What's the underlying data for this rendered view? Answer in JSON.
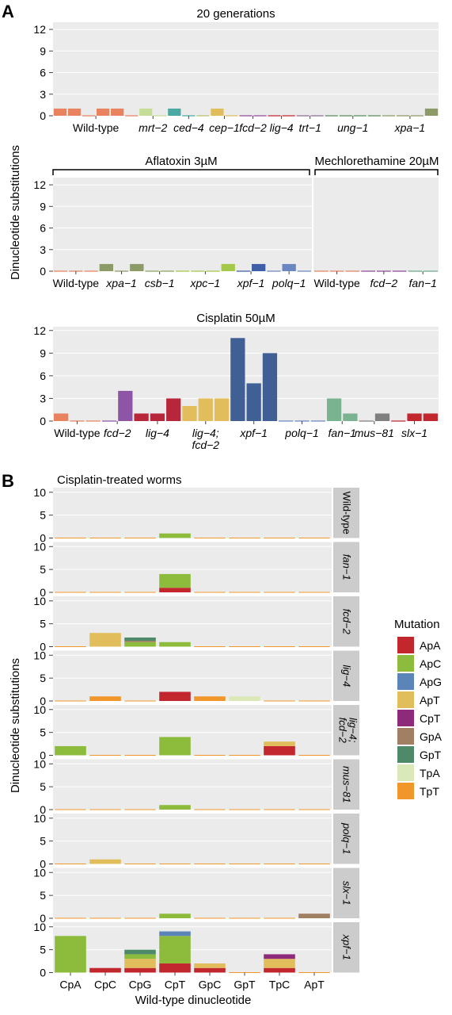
{
  "panel_labels": {
    "a": "A",
    "b": "B"
  },
  "y_axis_labels": {
    "a": "Dinucleotide substitutions",
    "b": "Dinucleotide substitutions"
  },
  "x_axis_label_b": "Wild-type dinucleotide",
  "legend": {
    "title": "Mutation",
    "items": [
      {
        "label": "ApA",
        "color": "#c1272d"
      },
      {
        "label": "ApC",
        "color": "#8dbc3c"
      },
      {
        "label": "ApG",
        "color": "#5b84b8"
      },
      {
        "label": "ApT",
        "color": "#e2bd5c"
      },
      {
        "label": "CpT",
        "color": "#8e2a7a"
      },
      {
        "label": "GpA",
        "color": "#a07f63"
      },
      {
        "label": "GpT",
        "color": "#4e8a6a"
      },
      {
        "label": "TpA",
        "color": "#dbe8b8"
      },
      {
        "label": "TpT",
        "color": "#f0962a"
      }
    ]
  },
  "chart_data": [
    {
      "type": "bar",
      "title": "20 generations",
      "ylim": [
        0,
        13
      ],
      "yticks": [
        0,
        3,
        6,
        9,
        12
      ],
      "values": [
        1,
        1,
        0,
        1,
        1,
        0,
        1,
        0,
        1,
        0,
        0,
        1,
        0,
        0,
        0,
        0,
        0,
        0,
        0,
        0,
        0,
        0,
        0,
        0,
        0,
        0,
        1
      ],
      "colors": [
        "#e8825f",
        "#e8825f",
        "#e8825f",
        "#e8825f",
        "#e8825f",
        "#e8825f",
        "#c5dd96",
        "#c5dd96",
        "#4aa9a3",
        "#4aa9a3",
        "#b7c26b",
        "#e2bd5c",
        "#e2bd5c",
        "#8e4a99",
        "#8e4a99",
        "#c1272d",
        "#c1272d",
        "#8c6d95",
        "#8c6d95",
        "#5a8a5a",
        "#5a8a5a",
        "#5a8a5a",
        "#5a8a5a",
        "#8c9a68",
        "#8c9a68",
        "#8c9a68",
        "#8c9a68"
      ],
      "group_labels": [
        {
          "label": "Wild-type",
          "bar_from": 0,
          "bar_to": 5
        },
        {
          "label": "mrt−2",
          "bar_from": 6,
          "bar_to": 7
        },
        {
          "label": "ced−4",
          "bar_from": 8,
          "bar_to": 10
        },
        {
          "label": "cep−1",
          "bar_from": 11,
          "bar_to": 12
        },
        {
          "label": "fcd−2",
          "bar_from": 13,
          "bar_to": 14
        },
        {
          "label": "lig−4",
          "bar_from": 15,
          "bar_to": 16
        },
        {
          "label": "trt−1",
          "bar_from": 17,
          "bar_to": 18
        },
        {
          "label": "ung−1",
          "bar_from": 19,
          "bar_to": 22
        },
        {
          "label": "xpa−1",
          "bar_from": 23,
          "bar_to": 26
        }
      ]
    },
    {
      "type": "bar",
      "title": "Aflatoxin 3µM",
      "ylim": [
        0,
        13
      ],
      "yticks": [
        0,
        3,
        6,
        9,
        12
      ],
      "values": [
        0,
        0,
        0,
        1,
        0,
        1,
        0,
        0,
        0,
        0,
        0,
        1,
        0,
        1,
        0,
        1,
        0
      ],
      "colors": [
        "#e8825f",
        "#e8825f",
        "#e8825f",
        "#8c9a68",
        "#8c9a68",
        "#8c9a68",
        "#8aa55f",
        "#8aa55f",
        "#a6c84a",
        "#a6c84a",
        "#a6c84a",
        "#a6c84a",
        "#3f5ea8",
        "#3f5ea8",
        "#6b86c0",
        "#6b86c0",
        "#6b86c0"
      ],
      "group_labels": [
        {
          "label": "Wild-type",
          "bar_from": 0,
          "bar_to": 2
        },
        {
          "label": "xpa−1",
          "bar_from": 3,
          "bar_to": 5
        },
        {
          "label": "csb−1",
          "bar_from": 6,
          "bar_to": 7
        },
        {
          "label": "xpc−1",
          "bar_from": 8,
          "bar_to": 11
        },
        {
          "label": "xpf−1",
          "bar_from": 12,
          "bar_to": 13
        },
        {
          "label": "polq−1",
          "bar_from": 14,
          "bar_to": 16
        }
      ]
    },
    {
      "type": "bar",
      "title": "Mechlorethamine 20µM",
      "ylim": [
        0,
        13
      ],
      "values": [
        0,
        0,
        0,
        0,
        0,
        0,
        0,
        0
      ],
      "colors": [
        "#e8825f",
        "#e8825f",
        "#e8825f",
        "#8e4a99",
        "#8e4a99",
        "#8e4a99",
        "#6aa88a",
        "#6aa88a"
      ],
      "group_labels": [
        {
          "label": "Wild-type",
          "bar_from": 0,
          "bar_to": 2
        },
        {
          "label": "fcd−2",
          "bar_from": 3,
          "bar_to": 5
        },
        {
          "label": "fan−1",
          "bar_from": 6,
          "bar_to": 7
        }
      ]
    },
    {
      "type": "bar",
      "title": "Cisplatin 50µM",
      "ylim": [
        0,
        12.5
      ],
      "yticks": [
        0,
        3,
        6,
        9,
        12
      ],
      "values": [
        1,
        0,
        0,
        0,
        4,
        1,
        1,
        3,
        2,
        3,
        3,
        11,
        5,
        9,
        0,
        0,
        0,
        3,
        1,
        0,
        1,
        0,
        1,
        1
      ],
      "colors": [
        "#e8825f",
        "#e8825f",
        "#e8825f",
        "#8e55a6",
        "#8e55a6",
        "#b7263a",
        "#b7263a",
        "#b7263a",
        "#e2bd5c",
        "#e2bd5c",
        "#e2bd5c",
        "#3f5f95",
        "#3f5f95",
        "#3f5f95",
        "#6b86c0",
        "#6b86c0",
        "#6b86c0",
        "#79b38f",
        "#79b38f",
        "#7f7f7f",
        "#7f7f7f",
        "#c1272d",
        "#c1272d",
        "#c1272d"
      ],
      "group_labels": [
        {
          "label": "Wild-type",
          "bar_from": 0,
          "bar_to": 2
        },
        {
          "label": "fcd−2",
          "bar_from": 3,
          "bar_to": 4
        },
        {
          "label": "lig−4",
          "bar_from": 5,
          "bar_to": 7
        },
        {
          "label": "lig−4;",
          "label2": "fcd−2",
          "bar_from": 8,
          "bar_to": 10
        },
        {
          "label": "xpf−1",
          "bar_from": 11,
          "bar_to": 13
        },
        {
          "label": "polq−1",
          "bar_from": 14,
          "bar_to": 16
        },
        {
          "label": "fan−1",
          "bar_from": 17,
          "bar_to": 18
        },
        {
          "label": "mus−81",
          "bar_from": 19,
          "bar_to": 20
        },
        {
          "label": "slx−1",
          "bar_from": 21,
          "bar_to": 23
        }
      ]
    },
    {
      "type": "bar",
      "title": "Cisplatin-treated worms",
      "stacked": true,
      "categories": [
        "CpA",
        "CpC",
        "CpG",
        "CpT",
        "GpC",
        "GpT",
        "TpC",
        "ApT"
      ],
      "ylim": [
        0,
        11
      ],
      "yticks": [
        0,
        5,
        10
      ],
      "facets": [
        {
          "label": "Wild-type",
          "stacks": [
            [],
            [],
            [],
            [
              [
                "ApC",
                1
              ]
            ],
            [],
            [],
            [],
            []
          ]
        },
        {
          "label": "fan−1",
          "stacks": [
            [],
            [],
            [],
            [
              [
                "ApA",
                1
              ],
              [
                "ApC",
                3
              ]
            ],
            [],
            [],
            [],
            []
          ]
        },
        {
          "label": "fcd−2",
          "stacks": [
            [],
            [
              [
                "ApT",
                3
              ]
            ],
            [
              [
                "ApC",
                1
              ],
              [
                "GpA",
                0.3
              ],
              [
                "GpT",
                0.7
              ]
            ],
            [
              [
                "ApC",
                1
              ]
            ],
            [],
            [],
            [],
            []
          ]
        },
        {
          "label": "lig−4",
          "stacks": [
            [],
            [
              [
                "TpT",
                1
              ]
            ],
            [],
            [
              [
                "ApA",
                2
              ]
            ],
            [
              [
                "TpT",
                1
              ]
            ],
            [
              [
                "TpA",
                1
              ]
            ],
            [],
            []
          ]
        },
        {
          "label": "lig−4;",
          "label2": "fcd−2",
          "stacks": [
            [
              [
                "ApC",
                2
              ]
            ],
            [],
            [],
            [
              [
                "ApC",
                4
              ]
            ],
            [],
            [],
            [
              [
                "ApA",
                2
              ],
              [
                "ApT",
                1
              ]
            ],
            []
          ]
        },
        {
          "label": "mus−81",
          "stacks": [
            [],
            [],
            [],
            [
              [
                "ApC",
                1
              ]
            ],
            [],
            [],
            [],
            []
          ]
        },
        {
          "label": "polq−1",
          "stacks": [
            [],
            [
              [
                "ApT",
                1
              ]
            ],
            [],
            [],
            [],
            [],
            [],
            []
          ]
        },
        {
          "label": "slx−1",
          "stacks": [
            [],
            [],
            [],
            [
              [
                "ApC",
                1
              ]
            ],
            [],
            [],
            [],
            [
              [
                "GpA",
                1
              ]
            ]
          ]
        },
        {
          "label": "xpf−1",
          "stacks": [
            [
              [
                "ApC",
                8
              ]
            ],
            [
              [
                "ApA",
                1
              ]
            ],
            [
              [
                "ApA",
                1
              ],
              [
                "ApT",
                2
              ],
              [
                "ApC",
                1
              ],
              [
                "GpT",
                1
              ]
            ],
            [
              [
                "ApA",
                2
              ],
              [
                "ApC",
                6
              ],
              [
                "ApG",
                1
              ],
              [
                "CpT",
                0
              ]
            ],
            [
              [
                "ApA",
                1
              ],
              [
                "ApT",
                1
              ]
            ],
            [],
            [
              [
                "ApA",
                1
              ],
              [
                "ApT",
                2
              ],
              [
                "CpT",
                1
              ]
            ],
            []
          ]
        }
      ]
    }
  ]
}
